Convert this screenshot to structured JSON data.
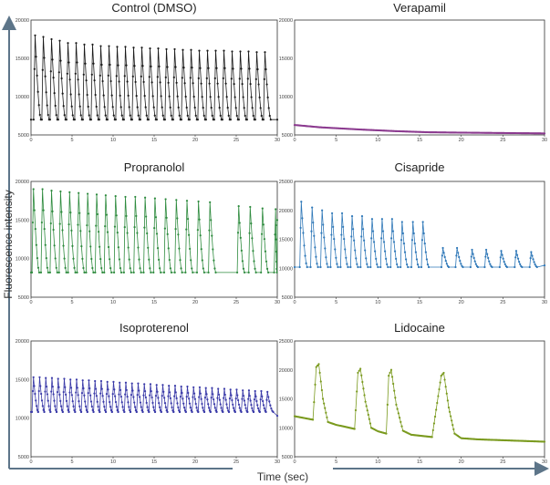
{
  "figure": {
    "xlabel": "Time (sec)",
    "ylabel": "Fluorescence intensity",
    "axis_color": "#5d7589"
  },
  "chart_data": [
    {
      "type": "line",
      "title": "Control (DMSO)",
      "color": "#1a1a1a",
      "xlim": [
        0,
        30
      ],
      "xticks": [
        0,
        5,
        10,
        15,
        20,
        25,
        30
      ],
      "ylim": [
        5000,
        20000
      ],
      "yticks": [
        5000,
        10000,
        15000,
        20000
      ],
      "series": [
        {
          "period": 1.0,
          "phase": 0.5,
          "baseline": 7000,
          "peaks": [
            18000,
            17800,
            17500,
            17300,
            17000,
            17000,
            16800,
            16800,
            16600,
            16600,
            16500,
            16500,
            16400,
            16400,
            16300,
            16300,
            16200,
            16200,
            16100,
            16100,
            16000,
            16000,
            16000,
            16000,
            15900,
            15900,
            15900,
            15800,
            15800
          ],
          "end": [
            30,
            7000
          ]
        }
      ]
    },
    {
      "type": "line",
      "title": "Verapamil",
      "color": "#8b3a8f",
      "xlim": [
        0,
        30
      ],
      "xticks": [
        0,
        5,
        10,
        15,
        20,
        25,
        30
      ],
      "ylim": [
        5000,
        20000
      ],
      "yticks": [
        5000,
        10000,
        15000,
        20000
      ],
      "series": [
        {
          "x": [
            0,
            3,
            8,
            12,
            16,
            20,
            25,
            30
          ],
          "y": [
            6300,
            6000,
            5700,
            5500,
            5350,
            5300,
            5250,
            5200
          ]
        }
      ]
    },
    {
      "type": "line",
      "title": "Propranolol",
      "color": "#2e8b3e",
      "xlim": [
        0,
        30
      ],
      "xticks": [
        0,
        5,
        10,
        15,
        20,
        25,
        30
      ],
      "ylim": [
        5000,
        20000
      ],
      "yticks": [
        5000,
        10000,
        15000,
        20000
      ],
      "series": [
        {
          "peaks_t": [
            0.3,
            1.4,
            2.5,
            3.6,
            4.7,
            5.8,
            6.9,
            8.0,
            9.1,
            10.3,
            11.5,
            12.7,
            13.9,
            15.1,
            16.4,
            17.7,
            19.0,
            20.4,
            21.8,
            25.3,
            26.7,
            28.2,
            29.8
          ],
          "peaks": [
            19000,
            19000,
            18800,
            18700,
            18600,
            18500,
            18400,
            18300,
            18200,
            18100,
            18000,
            18000,
            17900,
            17800,
            17700,
            17600,
            17500,
            17400,
            17300,
            16800,
            16700,
            16500,
            16400
          ],
          "baseline": 8200,
          "end": [
            30,
            15000
          ]
        }
      ]
    },
    {
      "type": "line",
      "title": "Cisapride",
      "color": "#2f78b8",
      "xlim": [
        0,
        30
      ],
      "xticks": [
        0,
        5,
        10,
        15,
        20,
        25,
        30
      ],
      "ylim": [
        5000,
        25000
      ],
      "yticks": [
        5000,
        10000,
        15000,
        20000,
        25000
      ],
      "series": [
        {
          "peaks_t": [
            0.8,
            2.1,
            3.3,
            4.5,
            5.7,
            6.9,
            8.1,
            9.3,
            10.5,
            11.7,
            12.9,
            14.2,
            15.4,
            17.8,
            19.5,
            21.3,
            23.0,
            24.8,
            26.6,
            28.4
          ],
          "peaks": [
            21500,
            20500,
            20000,
            19500,
            19500,
            19000,
            19000,
            18500,
            18500,
            18500,
            18000,
            18000,
            18000,
            13500,
            13500,
            13200,
            13200,
            13000,
            13000,
            12800
          ],
          "baseline": 10200,
          "end": [
            30,
            10500
          ]
        }
      ]
    },
    {
      "type": "line",
      "title": "Isoproterenol",
      "color": "#3a3aa8",
      "xlim": [
        0,
        30
      ],
      "xticks": [
        0,
        5,
        10,
        15,
        20,
        25,
        30
      ],
      "ylim": [
        5000,
        20000
      ],
      "yticks": [
        5000,
        10000,
        15000,
        20000
      ],
      "series": [
        {
          "period": 0.75,
          "phase": 0.3,
          "baseline": 10800,
          "peaks": [
            15300,
            15300,
            15200,
            15200,
            15100,
            15100,
            15000,
            15000,
            14900,
            14900,
            14800,
            14800,
            14700,
            14700,
            14600,
            14600,
            14500,
            14500,
            14400,
            14400,
            14300,
            14300,
            14200,
            14200,
            14100,
            14100,
            14000,
            14000,
            13900,
            13900,
            13800,
            13800,
            13700,
            13700,
            13600,
            13600,
            13500,
            13500,
            13400
          ],
          "end": [
            30,
            10300
          ]
        }
      ]
    },
    {
      "type": "line",
      "title": "Lidocaine",
      "color": "#7a9a1e",
      "xlim": [
        0,
        30
      ],
      "xticks": [
        0,
        5,
        10,
        15,
        20,
        25,
        30
      ],
      "ylim": [
        5000,
        25000
      ],
      "yticks": [
        5000,
        10000,
        15000,
        20000,
        25000
      ],
      "series": [
        {
          "x": [
            0,
            2.2,
            2.6,
            2.9,
            3.4,
            4.0,
            5.0,
            6.0,
            7.2,
            7.6,
            7.9,
            8.5,
            9.2,
            10.0,
            11.0,
            11.3,
            11.6,
            12.2,
            13.0,
            14.0,
            16.5,
            17.6,
            17.9,
            18.5,
            19.2,
            20.0,
            22.0,
            24.0,
            26.0,
            28.0,
            30.0
          ],
          "y": [
            12000,
            11400,
            20500,
            21000,
            15000,
            11000,
            10500,
            10200,
            9800,
            19500,
            20200,
            14500,
            10000,
            9400,
            9000,
            19000,
            20000,
            14000,
            9500,
            8800,
            8400,
            19000,
            19500,
            13500,
            9000,
            8200,
            8000,
            7900,
            7800,
            7700,
            7600
          ]
        }
      ]
    }
  ]
}
